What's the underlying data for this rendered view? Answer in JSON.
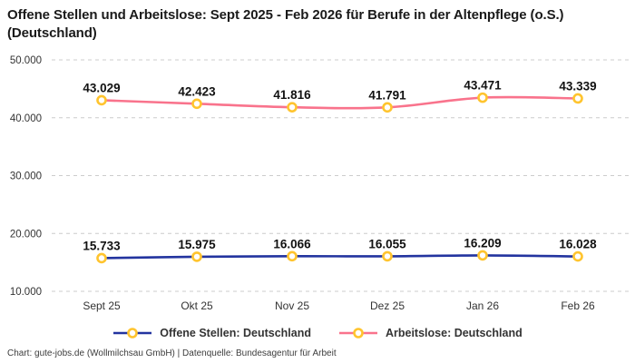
{
  "header": {
    "title": "Offene Stellen und Arbeitslose: Sept 2025 - Feb 2026 für Berufe in der Altenpflege (o.S.) (Deutschland)"
  },
  "chart_data": {
    "type": "line",
    "title": "Offene Stellen und Arbeitslose: Sept 2025 - Feb 2026 für Berufe in der Altenpflege (o.S.) (Deutschland)",
    "categories": [
      "Sept 25",
      "Okt 25",
      "Nov 25",
      "Dez 25",
      "Jan 26",
      "Feb 26"
    ],
    "series": [
      {
        "name": "Offene Stellen: Deutschland",
        "color": "#23349f",
        "values": [
          15733,
          15975,
          16066,
          16055,
          16209,
          16028
        ],
        "labels": [
          "15.733",
          "15.975",
          "16.066",
          "16.055",
          "16.209",
          "16.028"
        ]
      },
      {
        "name": "Arbeitslose: Deutschland",
        "color": "#f9738c",
        "values": [
          43029,
          42423,
          41816,
          41791,
          43471,
          43339
        ],
        "labels": [
          "43.029",
          "42.423",
          "41.816",
          "41.791",
          "43.471",
          "43.339"
        ]
      }
    ],
    "marker": {
      "fill": "#ffffff",
      "stroke": "#ffc42e"
    },
    "grid_color": "#cccccc",
    "xlabel": "",
    "ylabel": "",
    "ylim": [
      10000,
      50000
    ],
    "yticks": [
      10000,
      20000,
      30000,
      40000,
      50000
    ],
    "ytick_labels": [
      "10.000",
      "20.000",
      "30.000",
      "40.000",
      "50.000"
    ],
    "grid": true,
    "value_labels": true,
    "legend_position": "bottom"
  },
  "footer": {
    "text": "Chart: gute-jobs.de (Wollmilchsau GmbH) | Datenquelle: Bundesagentur für Arbeit"
  }
}
